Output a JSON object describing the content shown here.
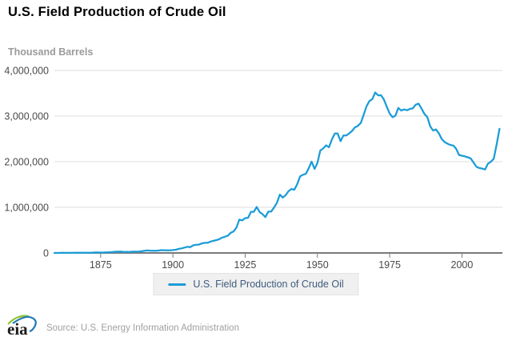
{
  "header": {
    "title": "U.S. Field Production of Crude Oil"
  },
  "legend": {
    "label": "U.S. Field Production of Crude Oil"
  },
  "footer": {
    "logo_text": "eia",
    "source": "Source: U.S. Energy Information Administration"
  },
  "chart_data": {
    "type": "line",
    "title": "U.S. Field Production of Crude Oil",
    "xlabel": "",
    "ylabel": "Thousand Barrels",
    "grid": "horizontal",
    "legend_position": "bottom",
    "xlim": [
      1859,
      2014
    ],
    "ylim": [
      0,
      4000000
    ],
    "xticks": [
      1875,
      1900,
      1925,
      1950,
      1975,
      2000
    ],
    "yticks": [
      0,
      1000000,
      2000000,
      3000000,
      4000000
    ],
    "colors": {
      "line": "#1a9cd8",
      "grid": "#dcdcdc",
      "axis": "#7a7a7a"
    },
    "x": [
      1859,
      1860,
      1861,
      1862,
      1863,
      1864,
      1865,
      1866,
      1867,
      1868,
      1869,
      1870,
      1871,
      1872,
      1873,
      1874,
      1875,
      1876,
      1877,
      1878,
      1879,
      1880,
      1881,
      1882,
      1883,
      1884,
      1885,
      1886,
      1887,
      1888,
      1889,
      1890,
      1891,
      1892,
      1893,
      1894,
      1895,
      1896,
      1897,
      1898,
      1899,
      1900,
      1901,
      1902,
      1903,
      1904,
      1905,
      1906,
      1907,
      1908,
      1909,
      1910,
      1911,
      1912,
      1913,
      1914,
      1915,
      1916,
      1917,
      1918,
      1919,
      1920,
      1921,
      1922,
      1923,
      1924,
      1925,
      1926,
      1927,
      1928,
      1929,
      1930,
      1931,
      1932,
      1933,
      1934,
      1935,
      1936,
      1937,
      1938,
      1939,
      1940,
      1941,
      1942,
      1943,
      1944,
      1945,
      1946,
      1947,
      1948,
      1949,
      1950,
      1951,
      1952,
      1953,
      1954,
      1955,
      1956,
      1957,
      1958,
      1959,
      1960,
      1961,
      1962,
      1963,
      1964,
      1965,
      1966,
      1967,
      1968,
      1969,
      1970,
      1971,
      1972,
      1973,
      1974,
      1975,
      1976,
      1977,
      1978,
      1979,
      1980,
      1981,
      1982,
      1983,
      1984,
      1985,
      1986,
      1987,
      1988,
      1989,
      1990,
      1991,
      1992,
      1993,
      1994,
      1995,
      1996,
      1997,
      1998,
      1999,
      2000,
      2001,
      2002,
      2003,
      2004,
      2005,
      2006,
      2007,
      2008,
      2009,
      2010,
      2011,
      2012,
      2013
    ],
    "series": [
      {
        "name": "U.S. Field Production of Crude Oil",
        "color": "#1a9cd8",
        "values": [
          2,
          500,
          2114,
          3057,
          2611,
          2116,
          2498,
          3598,
          3347,
          3646,
          4215,
          5261,
          5205,
          6293,
          9894,
          10927,
          8788,
          9133,
          13350,
          15397,
          19914,
          26286,
          27661,
          30350,
          23450,
          24218,
          21859,
          28065,
          28283,
          27612,
          35164,
          45824,
          54293,
          50515,
          48431,
          49344,
          52892,
          60960,
          60476,
          55364,
          57071,
          63621,
          69389,
          88767,
          100461,
          117081,
          134717,
          126494,
          166095,
          178527,
          183171,
          209557,
          220449,
          222935,
          248446,
          265763,
          281104,
          300767,
          335316,
          355928,
          378367,
          442929,
          472183,
          557531,
          732407,
          713940,
          763743,
          770874,
          901129,
          901474,
          1007323,
          898011,
          851081,
          785159,
          905656,
          908065,
          996596,
          1099687,
          1279160,
          1214355,
          1264962,
          1353214,
          1402228,
          1386645,
          1505613,
          1677904,
          1713655,
          1733590,
          1856987,
          2002448,
          1841940,
          1973574,
          2247711,
          2289836,
          2357082,
          2314988,
          2484428,
          2617283,
          2616901,
          2448987,
          2574590,
          2574933,
          2621758,
          2676189,
          2752723,
          2786822,
          2848514,
          3027763,
          3215742,
          3329042,
          3371751,
          3517450,
          3453914,
          3455368,
          3360903,
          3202585,
          3056779,
          2976180,
          3009265,
          3178216,
          3121310,
          3146365,
          3128624,
          3156715,
          3170999,
          3249696,
          3274553,
          3168252,
          3047378,
          2979123,
          2778773,
          2684687,
          2707039,
          2624632,
          2499033,
          2431476,
          2394268,
          2366017,
          2354831,
          2281919,
          2146732,
          2130707,
          2117511,
          2097124,
          2073453,
          1983302,
          1890106,
          1862259,
          1848450,
          1829963,
          1956596,
          1998137,
          2065191,
          2377453,
          2720782
        ]
      }
    ]
  }
}
